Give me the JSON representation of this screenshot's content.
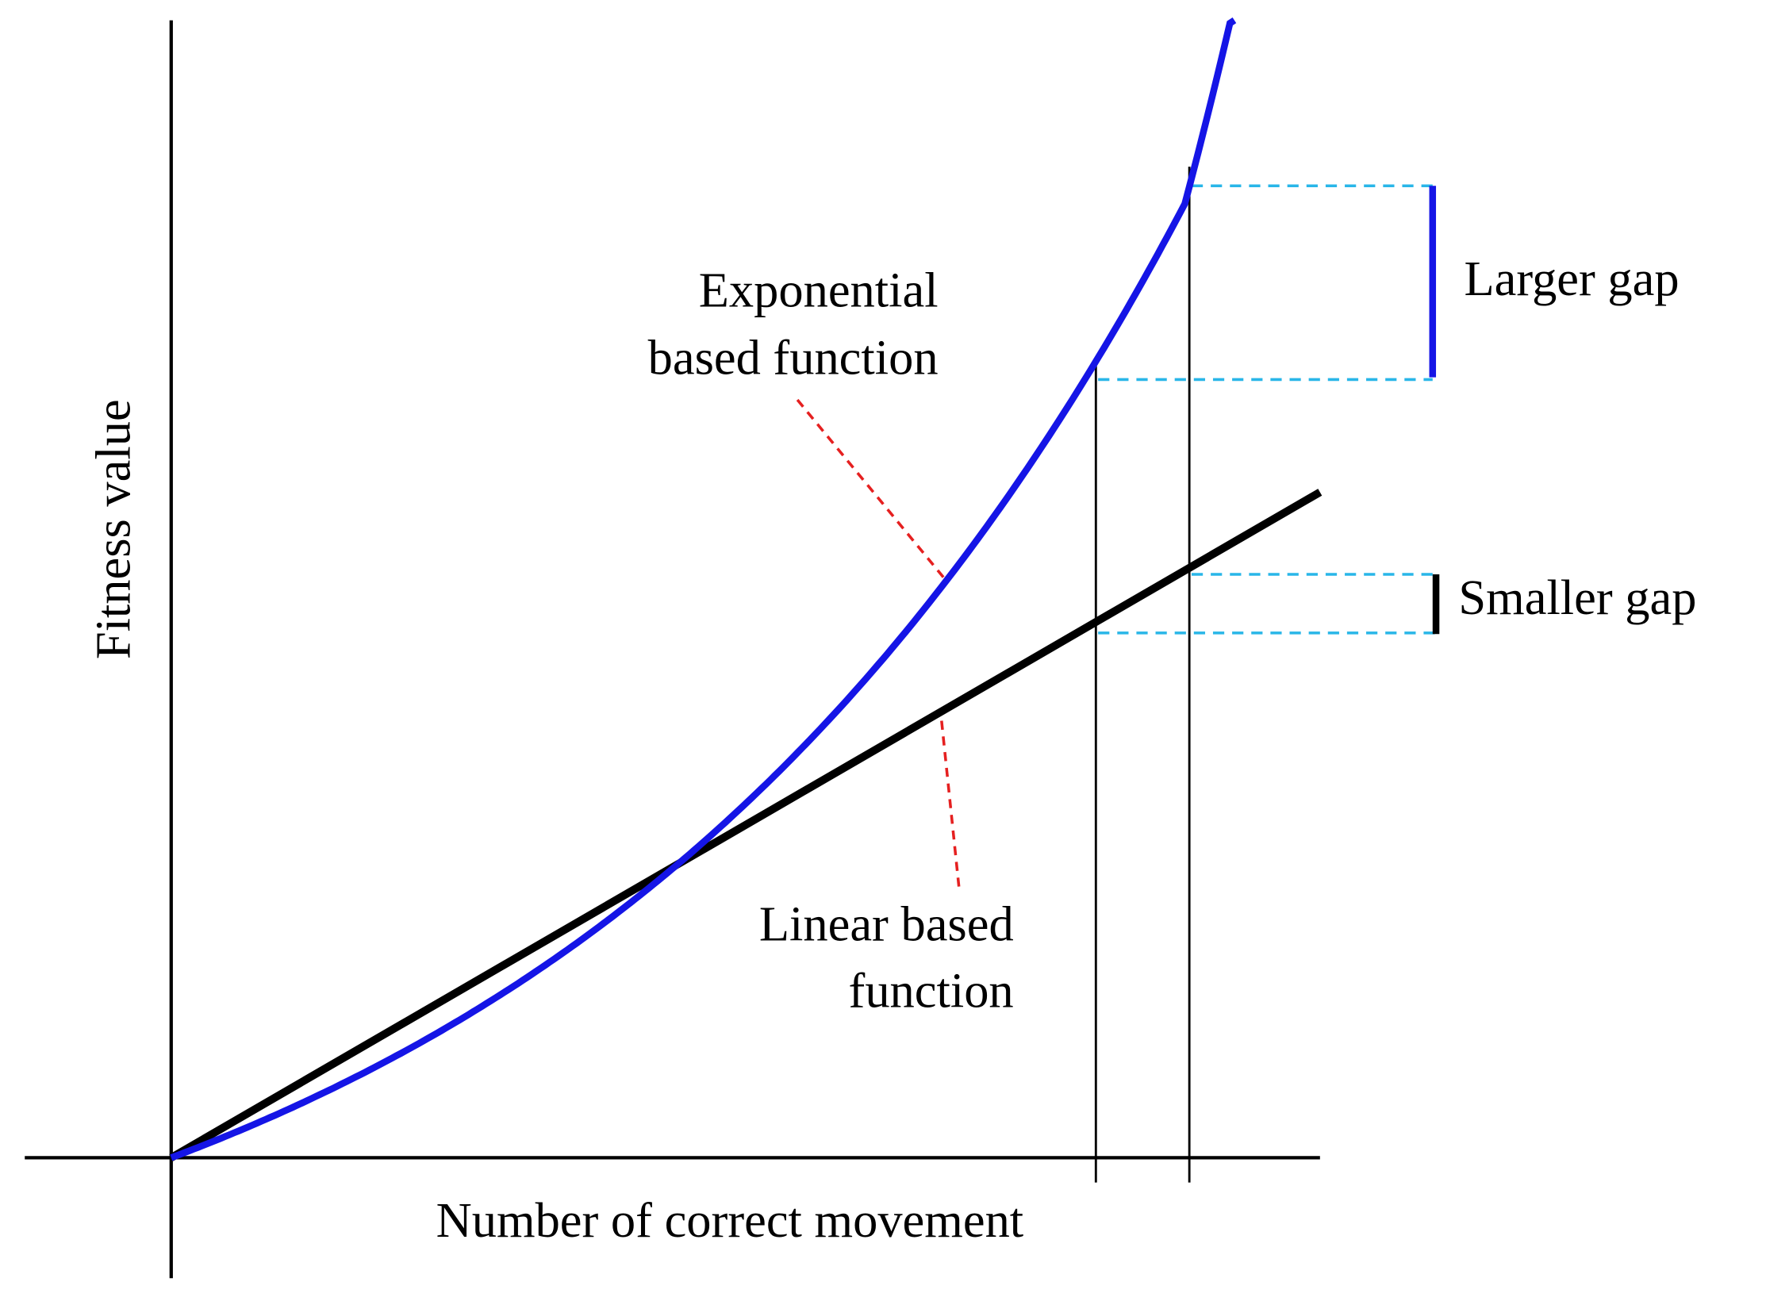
{
  "axes": {
    "x_label": "Number of correct movement",
    "y_label": "Fitness value"
  },
  "annotations": {
    "exponential": [
      "Exponential",
      "based function"
    ],
    "linear": [
      "Linear based",
      "function"
    ],
    "larger_gap": "Larger gap",
    "smaller_gap": "Smaller gap"
  }
}
